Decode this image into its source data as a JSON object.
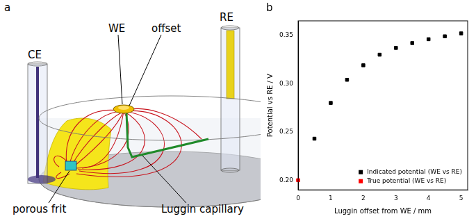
{
  "panel_labels": [
    "a",
    "b"
  ],
  "diagram": {
    "labels": [
      "CE",
      "WE",
      "offset",
      "RE",
      "porous frit",
      "Luggin capillary"
    ]
  },
  "chart_data": {
    "type": "scatter",
    "x_label": "Luggin offset from WE / mm",
    "y_label": "Potential vs RE / V",
    "series": [
      {
        "name": "Indicated potential (WE vs RE)",
        "color": "#000000",
        "marker": "square",
        "x": [
          0.5,
          1.0,
          1.5,
          2.0,
          2.5,
          3.0,
          3.5,
          4.0,
          4.5,
          5.0
        ],
        "values": [
          0.243,
          0.28,
          0.304,
          0.319,
          0.33,
          0.337,
          0.342,
          0.346,
          0.349,
          0.352
        ]
      },
      {
        "name": "True potential (WE vs RE)",
        "color": "#ff0000",
        "marker": "square",
        "x": [
          0
        ],
        "values": [
          0.2
        ]
      }
    ],
    "xlim": [
      0,
      5.2
    ],
    "xticks": [
      0,
      1,
      2,
      3,
      4,
      5
    ],
    "ylim": [
      0.19,
      0.365
    ],
    "yticks": [
      {
        "value": 0.2,
        "label": "0.20"
      },
      {
        "value": 0.25,
        "label": "0.25"
      },
      {
        "value": 0.3,
        "label": "0.30"
      },
      {
        "value": 0.35,
        "label": "0.35"
      }
    ],
    "grid": false,
    "legend": "lower right"
  }
}
